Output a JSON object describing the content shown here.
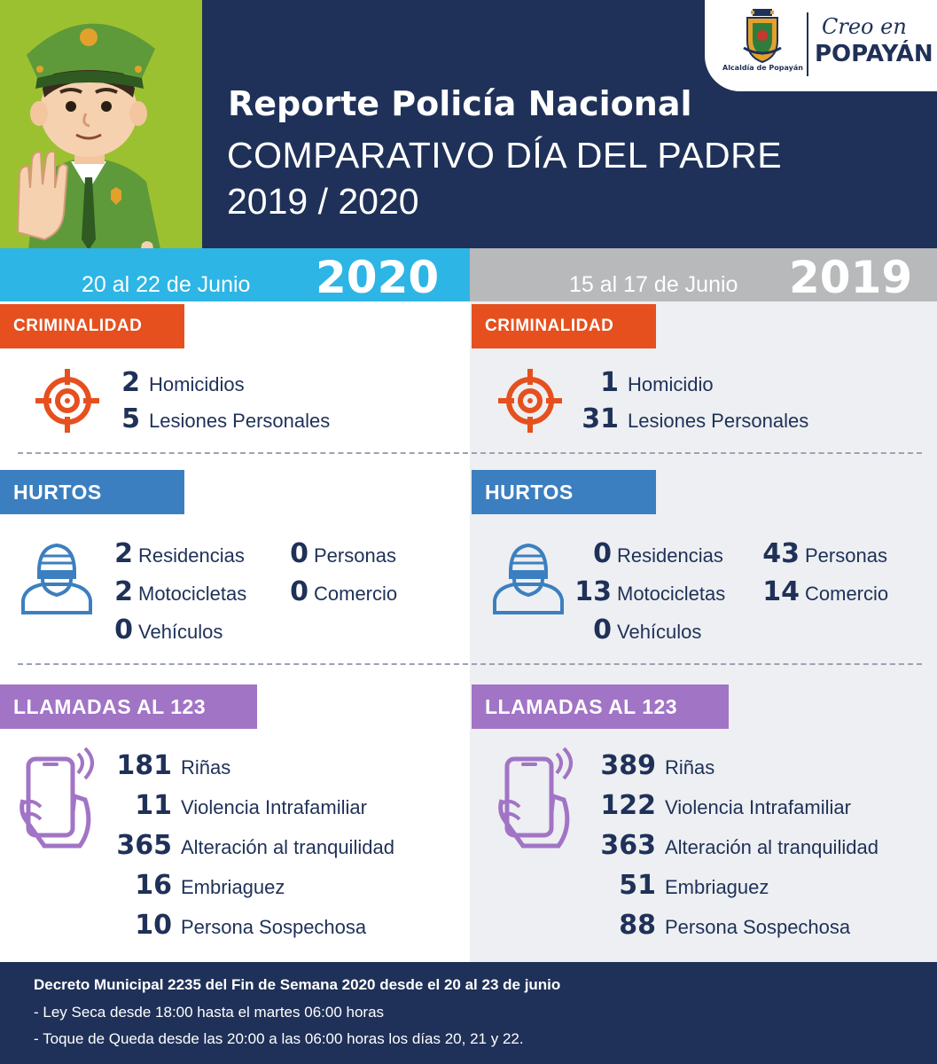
{
  "header": {
    "title": "Reporte Policía Nacional",
    "subtitle_line1": "COMPARATIVO DÍA DEL PADRE",
    "subtitle_line2": "2019 / 2020",
    "colors": {
      "navy": "#1f3158",
      "green": "#9cc130"
    }
  },
  "logos": {
    "alcaldia_caption": "Alcaldía de Popayán",
    "brand_script": "Creo en",
    "brand_word": "POPAYÁN"
  },
  "left": {
    "date_text": "20 al 22 de Junio",
    "year": "2020",
    "criminalidad": {
      "title": "CRIMINALIDAD",
      "items": [
        {
          "value": "2",
          "label": "Homicidios"
        },
        {
          "value": "5",
          "label": "Lesiones Personales"
        }
      ]
    },
    "hurtos": {
      "title": "HURTOS",
      "items": [
        {
          "value": "2",
          "label": "Residencias"
        },
        {
          "value": "2",
          "label": "Motocicletas"
        },
        {
          "value": "0",
          "label": "Vehículos"
        },
        {
          "value": "0",
          "label": "Personas"
        },
        {
          "value": "0",
          "label": "Comercio"
        }
      ]
    },
    "llamadas": {
      "title": "LLAMADAS AL 123",
      "items": [
        {
          "value": "181",
          "label": "Riñas"
        },
        {
          "value": "11",
          "label": "Violencia Intrafamiliar"
        },
        {
          "value": "365",
          "label": "Alteración al tranquilidad"
        },
        {
          "value": "16",
          "label": "Embriaguez"
        },
        {
          "value": "10",
          "label": "Persona Sospechosa"
        }
      ]
    }
  },
  "right": {
    "date_text": "15 al 17 de Junio",
    "year": "2019",
    "criminalidad": {
      "title": "CRIMINALIDAD",
      "items": [
        {
          "value": "1",
          "label": "Homicidio"
        },
        {
          "value": "31",
          "label": "Lesiones Personales"
        }
      ]
    },
    "hurtos": {
      "title": "HURTOS",
      "items": [
        {
          "value": "0",
          "label": "Residencias"
        },
        {
          "value": "13",
          "label": "Motocicletas"
        },
        {
          "value": "0",
          "label": "Vehículos"
        },
        {
          "value": "43",
          "label": "Personas"
        },
        {
          "value": "14",
          "label": "Comercio"
        }
      ]
    },
    "llamadas": {
      "title": "LLAMADAS AL 123",
      "items": [
        {
          "value": "389",
          "label": "Riñas"
        },
        {
          "value": "122",
          "label": "Violencia Intrafamiliar"
        },
        {
          "value": "363",
          "label": "Alteración al tranquilidad"
        },
        {
          "value": "51",
          "label": "Embriaguez"
        },
        {
          "value": "88",
          "label": "Persona Sospechosa"
        }
      ]
    }
  },
  "footer": {
    "heading": "Decreto Municipal 2235 del Fin de Semana 2020 desde el 20 al 23 de junio",
    "line1": "- Ley Seca desde 18:00 hasta el martes 06:00 horas",
    "line2": "- Toque de Queda desde las 20:00 a las 06:00 horas los días 20, 21 y 22."
  },
  "icons": {
    "police_officer": "police-officer-illustration",
    "target": "target-crosshair-icon",
    "thief": "masked-thief-icon",
    "phone": "phone-ringing-icon",
    "coat_of_arms": "coat-of-arms-icon"
  }
}
